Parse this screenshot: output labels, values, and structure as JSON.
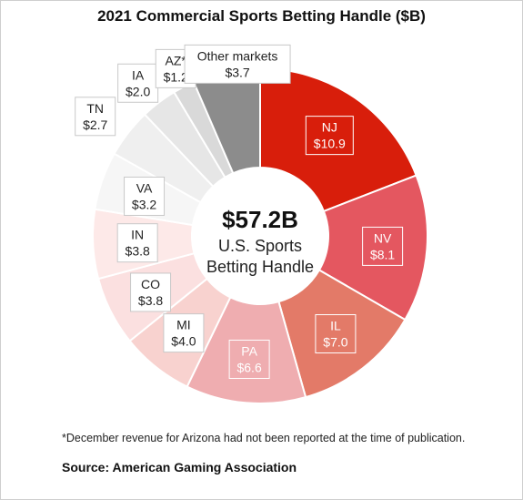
{
  "chart_data": {
    "type": "pie",
    "title": "2021 Commercial Sports Betting Handle ($B)",
    "center_value": "$57.2B",
    "center_label_line1": "U.S. Sports",
    "center_label_line2": "Betting Handle",
    "slices": [
      {
        "label": "NJ",
        "value": 10.9,
        "value_label": "$10.9",
        "color": "#d81e0b",
        "text_color": "#ffffff"
      },
      {
        "label": "NV",
        "value": 8.1,
        "value_label": "$8.1",
        "color": "#e45760",
        "text_color": "#ffffff"
      },
      {
        "label": "IL",
        "value": 7.0,
        "value_label": "$7.0",
        "color": "#e37a68",
        "text_color": "#ffffff"
      },
      {
        "label": "PA",
        "value": 6.6,
        "value_label": "$6.6",
        "color": "#efadb0",
        "text_color": "#ffffff"
      },
      {
        "label": "MI",
        "value": 4.0,
        "value_label": "$4.0",
        "color": "#f8d2cf",
        "text_color": "#222222"
      },
      {
        "label": "CO",
        "value": 3.8,
        "value_label": "$3.8",
        "color": "#fbe0e0",
        "text_color": "#222222"
      },
      {
        "label": "IN",
        "value": 3.8,
        "value_label": "$3.8",
        "color": "#fde9e8",
        "text_color": "#222222"
      },
      {
        "label": "VA",
        "value": 3.2,
        "value_label": "$3.2",
        "color": "#f6f6f6",
        "text_color": "#222222"
      },
      {
        "label": "TN",
        "value": 2.7,
        "value_label": "$2.7",
        "color": "#efefef",
        "text_color": "#222222"
      },
      {
        "label": "IA",
        "value": 2.0,
        "value_label": "$2.0",
        "color": "#e6e6e6",
        "text_color": "#222222"
      },
      {
        "label": "AZ*",
        "value": 1.2,
        "value_label": "$1.2",
        "color": "#d9d9d9",
        "text_color": "#222222"
      },
      {
        "label": "Other markets",
        "value": 3.7,
        "value_label": "$3.7",
        "color": "#8c8c8c",
        "text_color": "#222222"
      }
    ]
  },
  "footnote": "*December revenue for Arizona had not been reported at the time of publication.",
  "source": "Source: American Gaming Association"
}
